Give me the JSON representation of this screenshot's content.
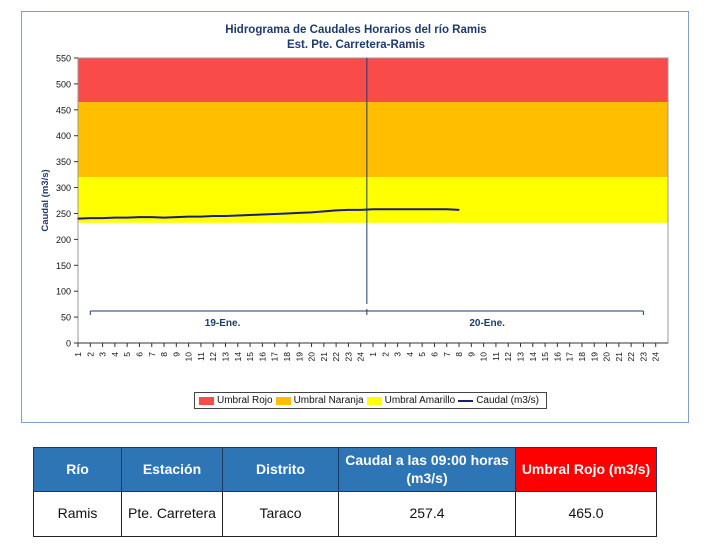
{
  "chart_data": {
    "type": "line",
    "title": "Hidrograma de Caudales Horarios del río Ramis",
    "subtitle": "Est. Pte. Carretera-Ramis",
    "ylabel": "Caudal  (m3/s)",
    "ylim": [
      0,
      550
    ],
    "yticks": [
      0,
      50,
      100,
      150,
      200,
      250,
      300,
      350,
      400,
      450,
      500,
      550
    ],
    "xticks": [
      "1",
      "2",
      "3",
      "4",
      "5",
      "6",
      "7",
      "8",
      "9",
      "10",
      "11",
      "12",
      "13",
      "14",
      "15",
      "16",
      "17",
      "18",
      "19",
      "20",
      "21",
      "22",
      "23",
      "24",
      "1",
      "2",
      "3",
      "4",
      "5",
      "6",
      "7",
      "8",
      "9",
      "10",
      "11",
      "12",
      "13",
      "14",
      "15",
      "16",
      "17",
      "18",
      "19",
      "20",
      "21",
      "22",
      "23",
      "24"
    ],
    "day_labels": [
      "19-Ene.",
      "20-Ene."
    ],
    "bands": [
      {
        "name": "Umbral Rojo",
        "from": 465,
        "to": 550,
        "color": "#fa4b4b"
      },
      {
        "name": "Umbral Naranja",
        "from": 320,
        "to": 465,
        "color": "#ffbf00"
      },
      {
        "name": "Umbral Amarillo",
        "from": 232,
        "to": 320,
        "color": "#ffff00"
      }
    ],
    "series": [
      {
        "name": "Caudal (m3/s)",
        "color": "#1c1c7a",
        "x": [
          1,
          2,
          3,
          4,
          5,
          6,
          7,
          8,
          9,
          10,
          11,
          12,
          13,
          14,
          15,
          16,
          17,
          18,
          19,
          20,
          21,
          22,
          23,
          24,
          25,
          26,
          27,
          28,
          29,
          30,
          31,
          32
        ],
        "values": [
          240,
          241,
          241,
          242,
          242,
          243,
          243,
          242,
          243,
          244,
          244,
          245,
          245,
          246,
          247,
          248,
          249,
          250,
          251,
          252,
          254,
          256,
          257,
          257,
          258,
          258,
          258,
          258,
          258,
          258,
          258,
          257
        ]
      }
    ],
    "legend": [
      "Umbral Rojo",
      "Umbral Naranja",
      "Umbral Amarillo",
      "Caudal (m3/s)"
    ],
    "legend_position": "bottom",
    "grid": false
  },
  "table": {
    "headers": [
      "Río",
      "Estación",
      "Distrito",
      "Caudal a las 09:00 horas (m3/s)",
      "Umbral Rojo (m3/s)"
    ],
    "row": [
      "Ramis",
      "Pte. Carretera",
      "Taraco",
      "257.4",
      "465.0"
    ]
  }
}
